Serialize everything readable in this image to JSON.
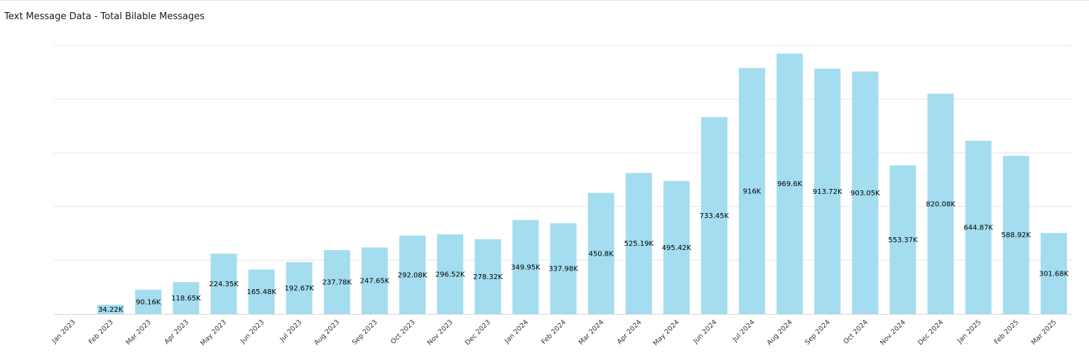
{
  "chart_data": {
    "type": "bar",
    "title": "Text Message Data - Total Bilable Messages",
    "xlabel": "",
    "ylabel": "",
    "ylim": [
      0,
      1000000
    ],
    "grid": true,
    "gridlines_every": 200000,
    "bar_color": "#a3ddef",
    "categories": [
      "Jan 2023",
      "Feb 2023",
      "Mar 2023",
      "Apr 2023",
      "May 2023",
      "Jun 2023",
      "Jul 2023",
      "Aug 2023",
      "Sep 2023",
      "Oct 2023",
      "Nov 2023",
      "Dec 2023",
      "Jan 2024",
      "Feb 2024",
      "Mar 2024",
      "Apr 2024",
      "May 2024",
      "Jun 2024",
      "Jul 2024",
      "Aug 2024",
      "Sep 2024",
      "Oct 2024",
      "Nov 2024",
      "Dec 2024",
      "Jan 2025",
      "Feb 2025",
      "Mar 2025"
    ],
    "values": [
      null,
      34220,
      90160,
      118650,
      224350,
      165480,
      192670,
      237780,
      247650,
      292080,
      296520,
      278320,
      349950,
      337980,
      450800,
      525190,
      495420,
      733450,
      916000,
      969600,
      913720,
      903050,
      553370,
      820080,
      644870,
      588920,
      301680
    ],
    "labels": [
      "",
      "34.22K",
      "90.16K",
      "118.65K",
      "224.35K",
      "165.48K",
      "192.67K",
      "237.78K",
      "247.65K",
      "292.08K",
      "296.52K",
      "278.32K",
      "349.95K",
      "337.98K",
      "450.8K",
      "525.19K",
      "495.42K",
      "733.45K",
      "916K",
      "969.6K",
      "913.72K",
      "903.05K",
      "553.37K",
      "820.08K",
      "644.87K",
      "588.92K",
      "301.68K"
    ]
  }
}
